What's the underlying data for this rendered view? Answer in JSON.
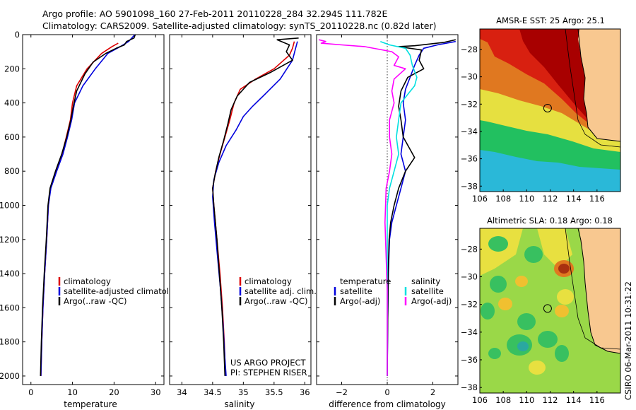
{
  "header": {
    "line1": "Argo profile: AO 5901098_160 27-Feb-2011 20110228_284 32.294S 111.782E",
    "line2": "Climatology: CARS2009. Satellite-adjusted climatology: synTS_20110228.nc (0.82d later)"
  },
  "colors": {
    "climatology": "#dd0000",
    "satellite": "#0000dd",
    "argo": "#000000",
    "argo_temp_diff": "#000000",
    "argo_sal_diff": "#ff00ff",
    "sat_sal_diff": "#00e0e0"
  },
  "notes": {
    "project": "US ARGO PROJECT",
    "pi": "PI: STEPHEN RISER",
    "credit": "CSIRO 06-Mar-2011 10:31:22"
  },
  "chart_data": [
    {
      "type": "line",
      "id": "temperature",
      "xlabel": "temperature",
      "ylabel": "",
      "xlim": [
        -2,
        32
      ],
      "ylim": [
        2050,
        0
      ],
      "xticks": [
        0,
        10,
        20,
        30
      ],
      "yticks": [
        0,
        200,
        400,
        600,
        800,
        1000,
        1200,
        1400,
        1600,
        1800,
        2000
      ],
      "legend": [
        "climatology",
        "satellite-adjusted climatology",
        "Argo(..raw -QC)"
      ],
      "series": [
        {
          "name": "climatology",
          "color": "#dd0000",
          "points": [
            [
              21,
              50
            ],
            [
              19.5,
              70
            ],
            [
              17,
              110
            ],
            [
              13.5,
              200
            ],
            [
              11,
              300
            ],
            [
              10,
              400
            ],
            [
              9.5,
              500
            ],
            [
              8.5,
              600
            ],
            [
              7.5,
              700
            ],
            [
              6,
              800
            ],
            [
              4.7,
              900
            ],
            [
              4.2,
              1000
            ],
            [
              3.8,
              1200
            ],
            [
              3.3,
              1400
            ],
            [
              2.9,
              1600
            ],
            [
              2.6,
              1800
            ],
            [
              2.4,
              2000
            ]
          ]
        },
        {
          "name": "satellite-adjusted climatology",
          "color": "#0000dd",
          "points": [
            [
              25,
              0
            ],
            [
              23.5,
              40
            ],
            [
              21.5,
              70
            ],
            [
              18.5,
              110
            ],
            [
              15.5,
              200
            ],
            [
              12.5,
              300
            ],
            [
              10.5,
              400
            ],
            [
              9.8,
              500
            ],
            [
              8.8,
              600
            ],
            [
              7.7,
              700
            ],
            [
              6.2,
              800
            ],
            [
              4.8,
              900
            ],
            [
              4.2,
              1000
            ],
            [
              3.8,
              1200
            ],
            [
              3.3,
              1400
            ],
            [
              2.9,
              1600
            ],
            [
              2.6,
              1800
            ],
            [
              2.4,
              2000
            ]
          ]
        },
        {
          "name": "Argo(..raw -QC)",
          "color": "#000000",
          "points": [
            [
              25.1,
              0
            ],
            [
              24.8,
              20
            ],
            [
              23,
              40
            ],
            [
              22.5,
              60
            ],
            [
              20.5,
              80
            ],
            [
              18,
              110
            ],
            [
              15,
              160
            ],
            [
              13,
              230
            ],
            [
              11,
              330
            ],
            [
              10.2,
              420
            ],
            [
              9.6,
              500
            ],
            [
              8.6,
              600
            ],
            [
              7.4,
              700
            ],
            [
              5.9,
              800
            ],
            [
              4.6,
              900
            ],
            [
              4.1,
              1000
            ],
            [
              3.7,
              1200
            ],
            [
              3.2,
              1400
            ],
            [
              2.8,
              1600
            ],
            [
              2.5,
              1800
            ],
            [
              2.3,
              2000
            ]
          ]
        }
      ]
    },
    {
      "type": "line",
      "id": "salinity",
      "xlabel": "salinity",
      "ylabel": "",
      "xlim": [
        33.8,
        36.1
      ],
      "ylim": [
        2050,
        0
      ],
      "xticks": [
        34,
        34.5,
        35,
        35.5,
        36
      ],
      "legend": [
        "climatology",
        "satellite adj. clim.",
        "Argo(..raw -QC)"
      ],
      "series": [
        {
          "name": "climatology",
          "color": "#dd0000",
          "points": [
            [
              35.83,
              40
            ],
            [
              35.8,
              80
            ],
            [
              35.75,
              120
            ],
            [
              35.5,
              200
            ],
            [
              35.2,
              260
            ],
            [
              34.95,
              320
            ],
            [
              34.85,
              400
            ],
            [
              34.78,
              500
            ],
            [
              34.7,
              600
            ],
            [
              34.62,
              700
            ],
            [
              34.55,
              800
            ],
            [
              34.5,
              900
            ],
            [
              34.52,
              1000
            ],
            [
              34.57,
              1200
            ],
            [
              34.62,
              1400
            ],
            [
              34.66,
              1600
            ],
            [
              34.69,
              1800
            ],
            [
              34.71,
              2000
            ]
          ]
        },
        {
          "name": "satellite adj. clim.",
          "color": "#0000dd",
          "points": [
            [
              35.88,
              40
            ],
            [
              35.85,
              80
            ],
            [
              35.8,
              150
            ],
            [
              35.6,
              260
            ],
            [
              35.35,
              350
            ],
            [
              35.15,
              420
            ],
            [
              35.0,
              480
            ],
            [
              34.88,
              560
            ],
            [
              34.72,
              650
            ],
            [
              34.6,
              750
            ],
            [
              34.52,
              850
            ],
            [
              34.5,
              950
            ],
            [
              34.53,
              1100
            ],
            [
              34.58,
              1300
            ],
            [
              34.63,
              1500
            ],
            [
              34.67,
              1700
            ],
            [
              34.7,
              1900
            ],
            [
              34.72,
              2000
            ]
          ]
        },
        {
          "name": "Argo(..raw -QC)",
          "color": "#000000",
          "points": [
            [
              35.9,
              20
            ],
            [
              35.55,
              30
            ],
            [
              35.75,
              60
            ],
            [
              35.7,
              100
            ],
            [
              35.8,
              150
            ],
            [
              35.45,
              220
            ],
            [
              35.1,
              280
            ],
            [
              34.9,
              360
            ],
            [
              34.8,
              440
            ],
            [
              34.75,
              520
            ],
            [
              34.68,
              620
            ],
            [
              34.6,
              720
            ],
            [
              34.54,
              820
            ],
            [
              34.5,
              900
            ],
            [
              34.52,
              1000
            ],
            [
              34.57,
              1200
            ],
            [
              34.61,
              1400
            ],
            [
              34.65,
              1600
            ],
            [
              34.68,
              1800
            ],
            [
              34.7,
              2000
            ]
          ]
        }
      ]
    },
    {
      "type": "line",
      "id": "difference",
      "xlabel": "difference from climatology",
      "ylabel": "",
      "xlim": [
        -3.1,
        3.1
      ],
      "ylim": [
        2050,
        0
      ],
      "xticks": [
        -2,
        0,
        2
      ],
      "legend_temperature_title": "temperature",
      "legend_salinity_title": "salinity",
      "legend_temperature": [
        "satellite",
        "Argo(-adj)"
      ],
      "legend_salinity": [
        "satellite",
        "Argo(-adj)"
      ],
      "series": [
        {
          "name": "temperature satellite",
          "color": "#0000dd",
          "points": [
            [
              3.0,
              40
            ],
            [
              2.2,
              60
            ],
            [
              1.6,
              80
            ],
            [
              1.4,
              120
            ],
            [
              1.2,
              180
            ],
            [
              1.0,
              250
            ],
            [
              0.8,
              320
            ],
            [
              0.7,
              400
            ],
            [
              0.8,
              500
            ],
            [
              0.7,
              600
            ],
            [
              0.6,
              700
            ],
            [
              0.8,
              800
            ],
            [
              0.6,
              900
            ],
            [
              0.4,
              1000
            ],
            [
              0.2,
              1100
            ],
            [
              0.1,
              1200
            ],
            [
              0.05,
              1400
            ],
            [
              0.02,
              1700
            ],
            [
              0.0,
              2000
            ]
          ]
        },
        {
          "name": "temperature Argo(-adj)",
          "color": "#000000",
          "points": [
            [
              3.0,
              30
            ],
            [
              2.5,
              45
            ],
            [
              1.2,
              65
            ],
            [
              0.5,
              70
            ],
            [
              1.5,
              90
            ],
            [
              1.4,
              150
            ],
            [
              1.6,
              200
            ],
            [
              0.9,
              250
            ],
            [
              0.6,
              330
            ],
            [
              0.5,
              420
            ],
            [
              0.6,
              500
            ],
            [
              0.7,
              600
            ],
            [
              1.2,
              720
            ],
            [
              0.8,
              800
            ],
            [
              0.5,
              900
            ],
            [
              0.3,
              1000
            ],
            [
              0.15,
              1100
            ],
            [
              0.08,
              1200
            ],
            [
              0.04,
              1400
            ],
            [
              0.02,
              1700
            ],
            [
              0.0,
              2000
            ]
          ]
        },
        {
          "name": "salinity satellite",
          "color": "#00e0e0",
          "points": [
            [
              -0.3,
              40
            ],
            [
              0.1,
              60
            ],
            [
              0.8,
              80
            ],
            [
              1.0,
              120
            ],
            [
              1.1,
              180
            ],
            [
              1.3,
              250
            ],
            [
              1.2,
              300
            ],
            [
              0.9,
              350
            ],
            [
              0.6,
              400
            ],
            [
              0.5,
              500
            ],
            [
              0.4,
              600
            ],
            [
              0.5,
              700
            ],
            [
              0.3,
              800
            ],
            [
              0.1,
              900
            ],
            [
              0.0,
              1000
            ],
            [
              0.0,
              1400
            ],
            [
              0.0,
              2000
            ]
          ]
        },
        {
          "name": "salinity Argo(-adj)",
          "color": "#ff00ff",
          "points": [
            [
              -3.0,
              30
            ],
            [
              -2.7,
              40
            ],
            [
              -2.9,
              50
            ],
            [
              -2.0,
              60
            ],
            [
              -1.0,
              70
            ],
            [
              0.2,
              100
            ],
            [
              0.5,
              130
            ],
            [
              0.3,
              180
            ],
            [
              0.8,
              200
            ],
            [
              0.3,
              260
            ],
            [
              0.2,
              330
            ],
            [
              0.3,
              400
            ],
            [
              0.1,
              500
            ],
            [
              0.1,
              600
            ],
            [
              0.2,
              700
            ],
            [
              0.1,
              800
            ],
            [
              -0.05,
              900
            ],
            [
              -0.1,
              1100
            ],
            [
              -0.05,
              1300
            ],
            [
              0.0,
              1500
            ],
            [
              0.0,
              2000
            ]
          ]
        }
      ]
    },
    {
      "type": "heatmap",
      "id": "sst_map",
      "title": "AMSR-E SST: 25 Argo: 25.1",
      "xlim": [
        106,
        118
      ],
      "ylim": [
        -38.4,
        -26.5
      ],
      "xticks": [
        106,
        108,
        110,
        112,
        114,
        116
      ],
      "yticks": [
        -28,
        -30,
        -32,
        -34,
        -36,
        -38
      ],
      "profile_location": {
        "lon": 111.782,
        "lat": -32.294
      }
    },
    {
      "type": "heatmap",
      "id": "sla_map",
      "title": "Altimetric SLA: 0.18 Argo: 0.18",
      "xlim": [
        106,
        118
      ],
      "ylim": [
        -38.4,
        -26.5
      ],
      "xticks": [
        106,
        108,
        110,
        112,
        114,
        116
      ],
      "yticks": [
        -28,
        -30,
        -32,
        -34,
        -36,
        -38
      ],
      "profile_location": {
        "lon": 111.782,
        "lat": -32.294
      }
    }
  ]
}
